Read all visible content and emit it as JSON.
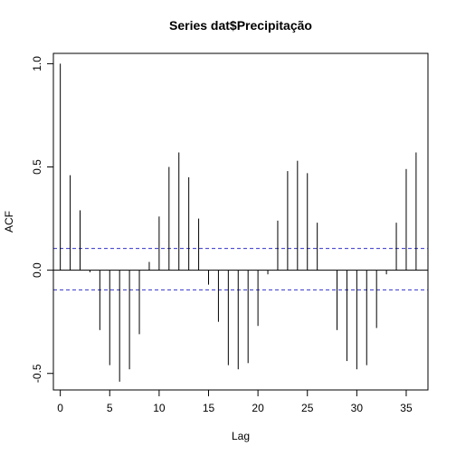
{
  "chart_data": {
    "type": "bar",
    "title": "Series  dat$Precipitação",
    "xlabel": "Lag",
    "ylabel": "ACF",
    "xlim": [
      -0.7,
      37.2
    ],
    "ylim": [
      -0.58,
      1.05
    ],
    "x_ticks": [
      0,
      5,
      10,
      15,
      20,
      25,
      30,
      35
    ],
    "y_ticks": [
      -0.5,
      0.0,
      0.5,
      1.0
    ],
    "y_tick_labels": [
      "-0.5",
      "0.0",
      "0.5",
      "1.0"
    ],
    "confidence_bounds": [
      0.105,
      -0.095
    ],
    "colors": {
      "bars": "#000000",
      "confidence": "#3333cc",
      "frame": "#000000"
    },
    "lags": [
      0,
      1,
      2,
      3,
      4,
      5,
      6,
      7,
      8,
      9,
      10,
      11,
      12,
      13,
      14,
      15,
      16,
      17,
      18,
      19,
      20,
      21,
      22,
      23,
      24,
      25,
      26,
      27,
      28,
      29,
      30,
      31,
      32,
      33,
      34,
      35,
      36
    ],
    "values": [
      1.0,
      0.46,
      0.29,
      -0.01,
      -0.29,
      -0.46,
      -0.54,
      -0.48,
      -0.31,
      0.04,
      0.26,
      0.5,
      0.57,
      0.45,
      0.25,
      -0.07,
      -0.25,
      -0.46,
      -0.48,
      -0.45,
      -0.27,
      -0.02,
      0.24,
      0.48,
      0.53,
      0.47,
      0.23,
      0.0,
      -0.29,
      -0.44,
      -0.48,
      -0.46,
      -0.28,
      -0.02,
      0.23,
      0.49,
      0.57
    ]
  }
}
